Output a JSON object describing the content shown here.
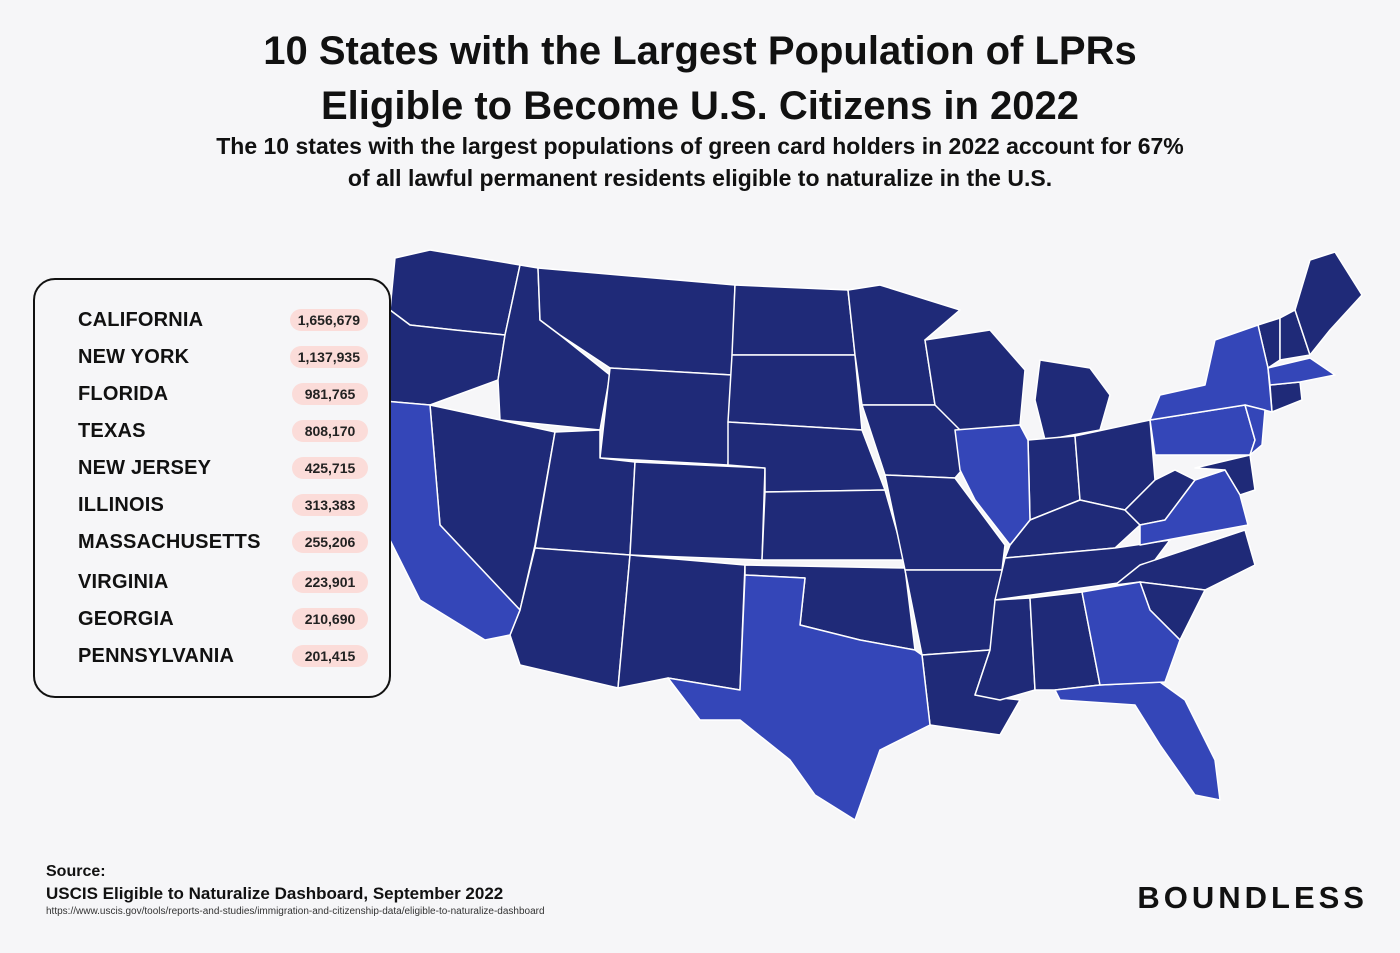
{
  "title": {
    "line1": "10 States with the Largest Population of LPRs",
    "line2": "Eligible to Become U.S. Citizens in 2022"
  },
  "subtitle": {
    "line1": "The 10 states with the largest populations of green card holders in 2022 account for 67%",
    "line2": "of all lawful permanent residents eligible to naturalize in the U.S."
  },
  "legend": {
    "items": [
      {
        "state": "CALIFORNIA",
        "value": "1,656,679"
      },
      {
        "state": "NEW YORK",
        "value": "1,137,935"
      },
      {
        "state": "FLORIDA",
        "value": "981,765"
      },
      {
        "state": "TEXAS",
        "value": "808,170"
      },
      {
        "state": "NEW JERSEY",
        "value": "425,715"
      },
      {
        "state": "ILLINOIS",
        "value": "313,383"
      },
      {
        "state": "MASSACHUSETTS",
        "value": "255,206"
      },
      {
        "state": "VIRGINIA",
        "value": "223,901"
      },
      {
        "state": "GEORGIA",
        "value": "210,690"
      },
      {
        "state": "PENNSYLVANIA",
        "value": "201,415"
      }
    ]
  },
  "colors": {
    "base_state": "#1f2a78",
    "highlight_state": "#3446b8",
    "value_pill": "#fbdcd9",
    "background": "#f6f6f8"
  },
  "source": {
    "label": "Source:",
    "name": "USCIS Eligible to Naturalize Dashboard, September 2022",
    "url": "https://www.uscis.gov/tools/reports-and-studies/immigration-and-citizenship-data/eligible-to-naturalize-dashboard"
  },
  "brand": "BOUNDLESS"
}
